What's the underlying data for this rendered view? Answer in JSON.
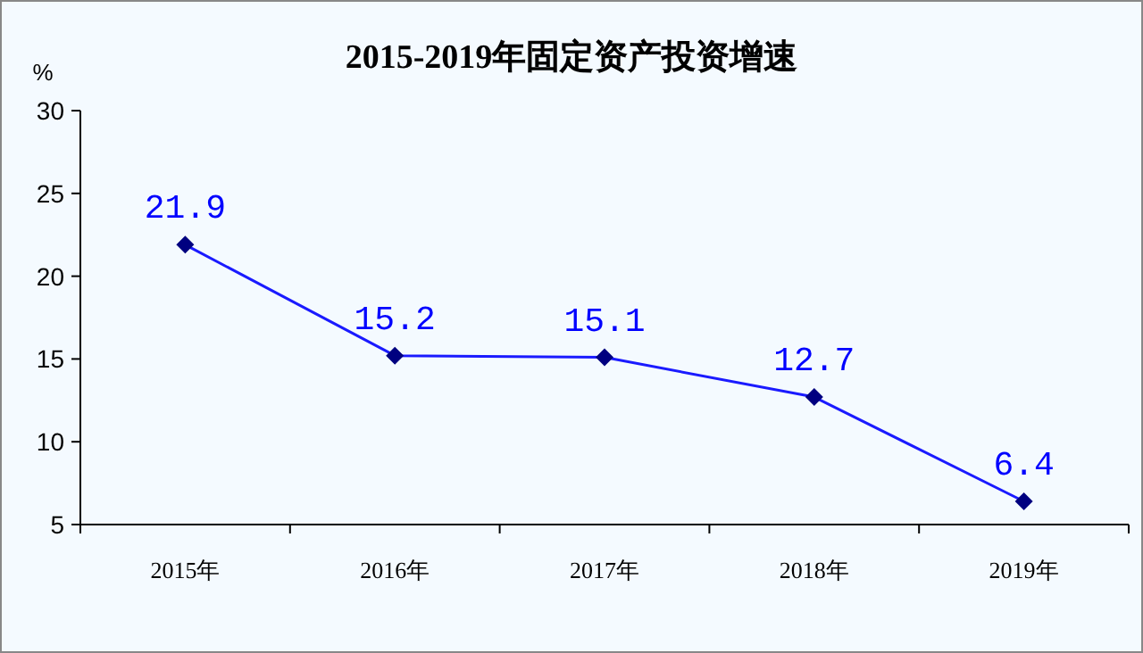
{
  "chart_data": {
    "type": "line",
    "title": "2015-2019年固定资产投资增速",
    "ylabel": "%",
    "categories": [
      "2015年",
      "2016年",
      "2017年",
      "2018年",
      "2019年"
    ],
    "series": [
      {
        "color": "#1a1aff",
        "values": [
          21.9,
          15.2,
          15.1,
          12.7,
          6.4
        ]
      }
    ],
    "ylim": [
      5,
      30
    ],
    "yticks": [
      5,
      10,
      15,
      20,
      25,
      30
    ],
    "data_labels": true,
    "marker": "diamond",
    "line_style": "solid"
  }
}
